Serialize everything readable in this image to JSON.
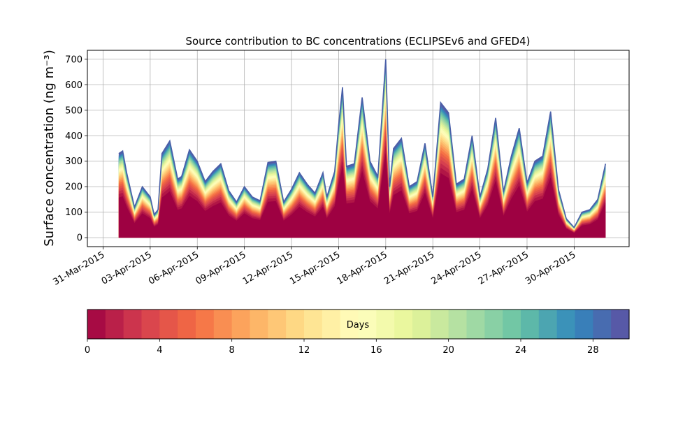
{
  "chart_data": {
    "type": "area",
    "title": "Source contribution to BC concentrations (ECLIPSEv6 and GFED4)",
    "ylabel": "Surface concentration (ng m⁻³)",
    "xlabel": "",
    "xlim": [
      "2015-03-30T00:00",
      "2015-05-03T12:00"
    ],
    "ylim": [
      -35,
      735
    ],
    "grid": true,
    "x_tick_labels": [
      "31-Mar-2015",
      "03-Apr-2015",
      "06-Apr-2015",
      "09-Apr-2015",
      "12-Apr-2015",
      "15-Apr-2015",
      "18-Apr-2015",
      "21-Apr-2015",
      "24-Apr-2015",
      "27-Apr-2015",
      "30-Apr-2015"
    ],
    "y_ticks": [
      0,
      100,
      200,
      300,
      400,
      500,
      600,
      700
    ],
    "series_description": "Cumulative contribution by particle age (days 0-30); total concentration shown",
    "total": {
      "x": [
        "2015-04-01T00:00",
        "2015-04-01T06:00",
        "2015-04-01T12:00",
        "2015-04-02T00:00",
        "2015-04-02T12:00",
        "2015-04-03T00:00",
        "2015-04-03T06:00",
        "2015-04-03T12:00",
        "2015-04-03T18:00",
        "2015-04-04T06:00",
        "2015-04-04T18:00",
        "2015-04-05T00:00",
        "2015-04-05T12:00",
        "2015-04-06T00:00",
        "2015-04-06T12:00",
        "2015-04-07T00:00",
        "2015-04-07T12:00",
        "2015-04-08T00:00",
        "2015-04-08T12:00",
        "2015-04-09T00:00",
        "2015-04-09T12:00",
        "2015-04-10T00:00",
        "2015-04-10T12:00",
        "2015-04-11T00:00",
        "2015-04-11T12:00",
        "2015-04-12T00:00",
        "2015-04-12T12:00",
        "2015-04-13T00:00",
        "2015-04-13T12:00",
        "2015-04-14T00:00",
        "2015-04-14T06:00",
        "2015-04-14T12:00",
        "2015-04-14T18:00",
        "2015-04-15T00:00",
        "2015-04-15T06:00",
        "2015-04-15T12:00",
        "2015-04-16T00:00",
        "2015-04-16T12:00",
        "2015-04-17T00:00",
        "2015-04-17T12:00",
        "2015-04-18T00:00",
        "2015-04-18T06:00",
        "2015-04-18T12:00",
        "2015-04-19T00:00",
        "2015-04-19T12:00",
        "2015-04-20T00:00",
        "2015-04-20T12:00",
        "2015-04-21T00:00",
        "2015-04-21T12:00",
        "2015-04-22T00:00",
        "2015-04-22T12:00",
        "2015-04-23T00:00",
        "2015-04-23T12:00",
        "2015-04-24T00:00",
        "2015-04-24T12:00",
        "2015-04-25T00:00",
        "2015-04-25T12:00",
        "2015-04-26T00:00",
        "2015-04-26T12:00",
        "2015-04-27T00:00",
        "2015-04-27T12:00",
        "2015-04-28T00:00",
        "2015-04-28T12:00",
        "2015-04-29T00:00",
        "2015-04-29T12:00",
        "2015-04-30T00:00",
        "2015-04-30T12:00",
        "2015-05-01T00:00",
        "2015-05-01T12:00",
        "2015-05-02T00:00"
      ],
      "values": [
        330,
        340,
        255,
        120,
        200,
        160,
        90,
        110,
        330,
        380,
        230,
        240,
        345,
        300,
        220,
        260,
        290,
        185,
        140,
        200,
        160,
        145,
        295,
        300,
        140,
        190,
        255,
        210,
        175,
        255,
        160,
        210,
        260,
        440,
        590,
        280,
        290,
        550,
        300,
        240,
        700,
        200,
        350,
        390,
        200,
        220,
        370,
        160,
        530,
        490,
        210,
        230,
        400,
        160,
        270,
        470,
        180,
        320,
        430,
        215,
        300,
        320,
        495,
        190,
        75,
        40,
        100,
        110,
        150,
        290
      ]
    },
    "colorbar": {
      "label": "Days",
      "ticks": [
        0,
        4,
        8,
        12,
        16,
        20,
        24,
        28
      ],
      "range": [
        0,
        30
      ],
      "colormap": "Spectral",
      "colors": [
        "#9e0142",
        "#d53e4f",
        "#f46d43",
        "#fdae61",
        "#fee08b",
        "#ffffbf",
        "#e6f598",
        "#abdda4",
        "#66c2a5",
        "#3288bd",
        "#5e4fa2"
      ]
    }
  }
}
